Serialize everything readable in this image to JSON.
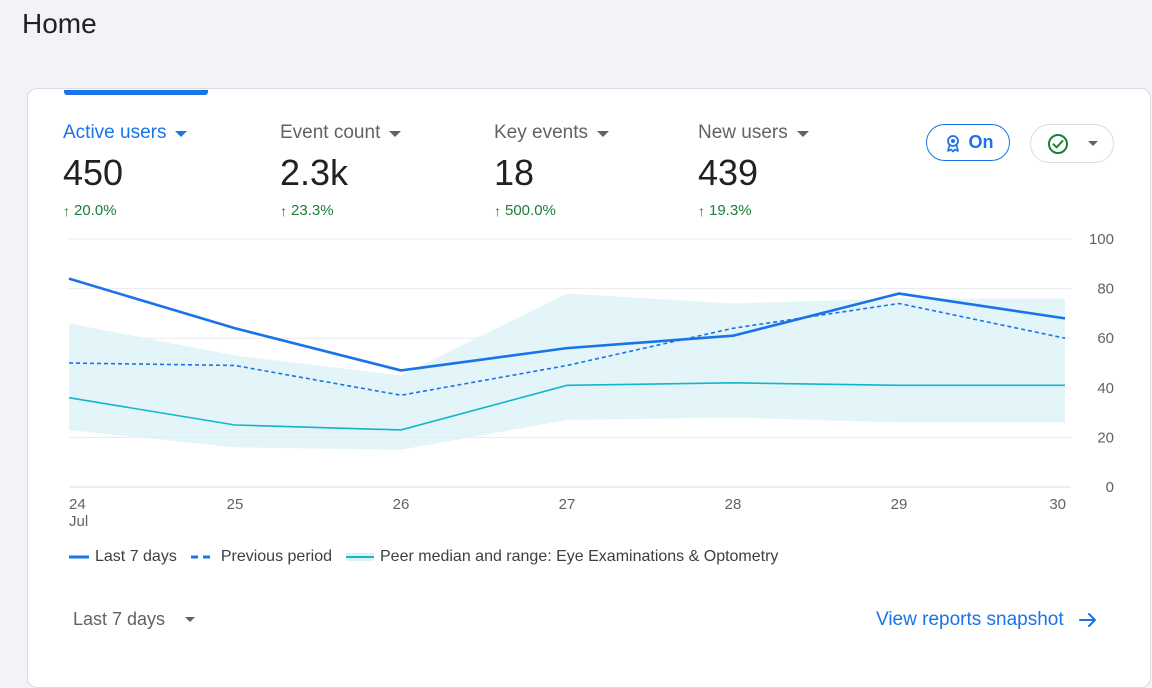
{
  "page": {
    "title": "Home"
  },
  "metrics": [
    {
      "label": "Active users",
      "value": "450",
      "change": "20.0%"
    },
    {
      "label": "Event count",
      "value": "2.3k",
      "change": "23.3%"
    },
    {
      "label": "Key events",
      "value": "18",
      "change": "500.0%"
    },
    {
      "label": "New users",
      "value": "439",
      "change": "19.3%"
    }
  ],
  "controls": {
    "benchmark_toggle": "On",
    "benchmark_icon": "ribbon-badge-icon",
    "status_icon": "check-circle-icon"
  },
  "chart_data": {
    "type": "line",
    "categories": [
      "24",
      "25",
      "26",
      "27",
      "28",
      "29",
      "30"
    ],
    "x_sublabel": "Jul",
    "ylim": [
      0,
      100
    ],
    "yticks": [
      0,
      20,
      40,
      60,
      80,
      100
    ],
    "grid": true,
    "series": [
      {
        "name": "Last 7 days",
        "style": "solid",
        "color": "#1a73e8",
        "values": [
          84,
          64,
          47,
          56,
          61,
          78,
          68
        ]
      },
      {
        "name": "Previous period",
        "style": "dashed",
        "color": "#1a73e8",
        "values": [
          50,
          49,
          37,
          49,
          64,
          74,
          60
        ]
      },
      {
        "name": "Peer median and range: Eye Examinations & Optometry",
        "style": "band",
        "color": "#12b5cb",
        "values": [
          36,
          25,
          23,
          41,
          42,
          41,
          41
        ],
        "range_high": [
          66,
          53,
          45,
          78,
          74,
          76,
          76
        ],
        "range_low": [
          23,
          16,
          15,
          27,
          28,
          26,
          26
        ]
      }
    ]
  },
  "footer": {
    "date_range": "Last 7 days",
    "snapshot_link": "View reports snapshot"
  }
}
